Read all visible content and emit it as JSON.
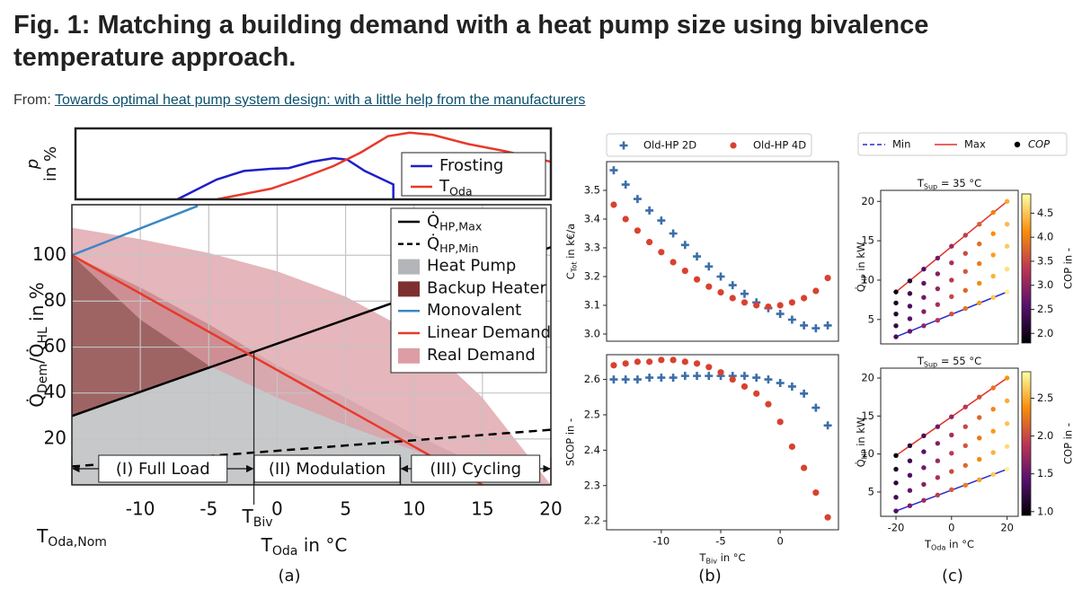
{
  "header": {
    "title": "Fig. 1: Matching a building demand with a heat pump size using bivalence temperature approach.",
    "from_label": "From:",
    "link": "Towards optimal heat pump system design: with a little help from the manufacturers"
  },
  "chart_data": [
    {
      "type": "line",
      "ylabel": [
        "p",
        "in %"
      ],
      "xlim": [
        -15,
        20
      ],
      "ylim": [
        0,
        1
      ],
      "legend": "upper right",
      "series": [
        {
          "name": "Frosting",
          "color": "#1f1fc8",
          "x": [
            -7.5,
            -4.6,
            -2.6,
            -0.6,
            0.7,
            2.4,
            4,
            5,
            6.3,
            8.4,
            8.4
          ],
          "values": [
            0,
            0.28,
            0.4,
            0.43,
            0.44,
            0.53,
            0.58,
            0.56,
            0.4,
            0.21,
            0
          ]
        },
        {
          "name": [
            "T",
            "Oda"
          ],
          "color": "#e8392a",
          "x": [
            -4.6,
            -0.6,
            1.4,
            4,
            6,
            8,
            9.6,
            11.3,
            13.9,
            16.6,
            20
          ],
          "values": [
            0,
            0.15,
            0.28,
            0.47,
            0.66,
            0.89,
            0.94,
            0.91,
            0.78,
            0.68,
            0.53
          ]
        }
      ]
    },
    {
      "type": "area",
      "xlim": [
        -15,
        20
      ],
      "ylim": [
        0,
        122
      ],
      "xticks": [
        -10,
        -5,
        0,
        5,
        10,
        15,
        20
      ],
      "yticks": [
        20,
        40,
        60,
        80,
        100
      ],
      "grid": true,
      "legend": "upper right",
      "xlabel": [
        "T",
        "Oda",
        " in °C"
      ],
      "ylabel": [
        "Q̇",
        "Dem",
        "/Q̇",
        "HL",
        " in %"
      ],
      "x_nominal": {
        "value": -15,
        "label": [
          "T",
          "Oda,Nom"
        ]
      },
      "bivalence": {
        "value": -1.7,
        "label": [
          "T",
          "Biv"
        ]
      },
      "regions": [
        {
          "label": "(I) Full Load",
          "from": -15,
          "to": -1.7
        },
        {
          "label": "(II) Modulation",
          "from": -1.7,
          "to": 9
        },
        {
          "label": "(III) Cycling",
          "from": 9,
          "to": 20
        }
      ],
      "caption": "(a)",
      "series": [
        {
          "name": [
            "Q̇",
            "HP,Max"
          ],
          "kind": "line",
          "color": "#000000",
          "x": [
            -15,
            20
          ],
          "values": [
            30,
            103.5
          ]
        },
        {
          "name": [
            "Q̇",
            "HP,Min"
          ],
          "kind": "dashed",
          "color": "#000000",
          "x": [
            -15,
            20
          ],
          "values": [
            8,
            24
          ]
        },
        {
          "name": "Heat Pump",
          "kind": "area",
          "color": "#b3b5b8",
          "x": [
            -15,
            -10,
            -5,
            -1.7,
            0,
            5,
            10,
            15,
            20
          ],
          "values": [
            30,
            40.5,
            51,
            58,
            52,
            38,
            22,
            8,
            0
          ],
          "lower": [
            0,
            0,
            0,
            0,
            0,
            0,
            0,
            0,
            0
          ]
        },
        {
          "name": "Backup Heater",
          "kind": "area",
          "color": "#7e3030",
          "x": [
            -15,
            -10,
            -5,
            -1.7
          ],
          "values": [
            100,
            86,
            70,
            58
          ],
          "lower": [
            30,
            40.5,
            51,
            58
          ]
        },
        {
          "name": "Monovalent",
          "kind": "line",
          "color": "#3b87c4",
          "x": [
            -15,
            -5.8
          ],
          "values": [
            100,
            121.5
          ]
        },
        {
          "name": "Linear Demand",
          "kind": "line",
          "color": "#e8392a",
          "x": [
            -15,
            15
          ],
          "values": [
            100,
            0
          ]
        },
        {
          "name": "Real Demand",
          "kind": "area",
          "color": "#dc9ea4",
          "x": [
            -15,
            -10,
            -5,
            0,
            5,
            10,
            15,
            20
          ],
          "values": [
            112,
            107,
            101,
            93,
            82,
            66,
            38,
            0
          ],
          "lower": [
            100,
            72,
            52,
            38,
            26,
            15,
            5,
            0
          ]
        }
      ]
    },
    {
      "type": "scatter",
      "legend": "above",
      "x": [
        -14,
        -13,
        -12,
        -11,
        -10,
        -9,
        -8,
        -7,
        -6,
        -5,
        -4,
        -3,
        -2,
        -1,
        0,
        1,
        2,
        3,
        4
      ],
      "xlim": [
        -14.6,
        4.9
      ],
      "ylim": [
        2.975,
        3.6
      ],
      "yticks": [
        {
          "value": 3,
          "label": "3.0"
        },
        3.1,
        3.2,
        3.3,
        3.4,
        3.5
      ],
      "ylabel": [
        "C",
        "Tot",
        " in k€/a"
      ],
      "series": [
        {
          "name": "Old-HP 2D",
          "color": "#3b6ea8",
          "marker": "plus",
          "values": [
            3.57,
            3.52,
            3.47,
            3.43,
            3.395,
            3.35,
            3.31,
            3.27,
            3.235,
            3.2,
            3.17,
            3.14,
            3.11,
            3.09,
            3.07,
            3.05,
            3.03,
            3.02,
            3.03
          ]
        },
        {
          "name": "Old-HP 4D",
          "color": "#d9412f",
          "marker": "circle",
          "values": [
            3.45,
            3.4,
            3.36,
            3.32,
            3.285,
            3.25,
            3.22,
            3.19,
            3.165,
            3.145,
            3.125,
            3.11,
            3.1,
            3.095,
            3.1,
            3.11,
            3.125,
            3.15,
            3.195
          ]
        }
      ]
    },
    {
      "type": "scatter",
      "x": [
        -14,
        -13,
        -12,
        -11,
        -10,
        -9,
        -8,
        -7,
        -6,
        -5,
        -4,
        -3,
        -2,
        -1,
        0,
        1,
        2,
        3,
        4
      ],
      "xlim": [
        -14.6,
        4.9
      ],
      "ylim": [
        2.175,
        2.67
      ],
      "xticks": [
        -10,
        -5,
        0
      ],
      "yticks": [
        2.2,
        2.3,
        2.4,
        2.5,
        2.6
      ],
      "ylabel": "SCOP in -",
      "xlabel": [
        "T",
        "Biv",
        " in °C"
      ],
      "caption": "(b)",
      "series": [
        {
          "color": "#3b6ea8",
          "marker": "plus",
          "values": [
            2.6,
            2.6,
            2.6,
            2.605,
            2.605,
            2.605,
            2.61,
            2.61,
            2.61,
            2.61,
            2.61,
            2.61,
            2.605,
            2.6,
            2.59,
            2.58,
            2.56,
            2.52,
            2.47
          ]
        },
        {
          "color": "#d9412f",
          "marker": "circle",
          "values": [
            2.64,
            2.645,
            2.65,
            2.65,
            2.655,
            2.655,
            2.65,
            2.645,
            2.635,
            2.62,
            2.6,
            2.58,
            2.56,
            2.53,
            2.48,
            2.41,
            2.35,
            2.28,
            2.21
          ]
        }
      ]
    },
    {
      "type": "scatter",
      "legend": "above",
      "title": [
        "T",
        "Sup",
        " = 35 °C"
      ],
      "xlim": [
        -25.5,
        24
      ],
      "ylim": [
        1.9,
        21.4
      ],
      "yticks": [
        5,
        10,
        15,
        20
      ],
      "ylabel": [
        "Q̇",
        "HP",
        " in kW"
      ],
      "colormap": "inferno",
      "clim": [
        1.8,
        4.9
      ],
      "cticks": [
        {
          "value": 2,
          "label": "2.0"
        },
        2.5,
        {
          "value": 3,
          "label": "3.0"
        },
        3.5,
        {
          "value": 4,
          "label": "4.0"
        },
        4.5
      ],
      "clabel": "COP in -",
      "points_name": "COP",
      "lines": [
        {
          "name": "Min",
          "color": "#2a2ad0",
          "dash": true,
          "x": [
            -20,
            20
          ],
          "values": [
            2.8,
            8.5
          ]
        },
        {
          "name": "Max",
          "color": "#e0302a",
          "x": [
            -20,
            20
          ],
          "values": [
            8.5,
            20
          ]
        }
      ],
      "px": [
        -20,
        -20,
        -20,
        -20,
        -20,
        -15,
        -15,
        -15,
        -15,
        -15,
        -10,
        -10,
        -10,
        -10,
        -10,
        -5,
        -5,
        -5,
        -5,
        -5,
        0,
        0,
        0,
        0,
        0,
        5,
        5,
        5,
        5,
        5,
        10,
        10,
        10,
        10,
        10,
        15,
        15,
        15,
        15,
        15,
        20,
        20,
        20,
        20,
        20
      ],
      "py": [
        2.8,
        4.2,
        5.7,
        7.1,
        8.5,
        3.5,
        5.1,
        6.7,
        8.3,
        9.9,
        4.2,
        6,
        7.8,
        9.6,
        11.4,
        4.9,
        6.9,
        8.9,
        10.8,
        12.8,
        5.7,
        7.9,
        10,
        12.2,
        14.3,
        6.4,
        8.7,
        11.1,
        13.4,
        15.7,
        7.1,
        9.6,
        12.1,
        14.6,
        17.1,
        7.8,
        10.5,
        13.2,
        15.9,
        18.6,
        8.5,
        11.4,
        14.3,
        17.1,
        20
      ],
      "pc": [
        2.4,
        2.28,
        2.15,
        2.03,
        1.9,
        2.7,
        2.58,
        2.45,
        2.33,
        2.2,
        3,
        2.88,
        2.75,
        2.63,
        2.5,
        3.3,
        3.18,
        3.05,
        2.93,
        2.8,
        3.6,
        3.48,
        3.35,
        3.23,
        3.1,
        3.9,
        3.78,
        3.65,
        3.53,
        3.4,
        4.2,
        4.08,
        3.95,
        3.83,
        3.7,
        4.5,
        4.38,
        4.25,
        4.13,
        4,
        4.8,
        4.68,
        4.55,
        4.43,
        4.3
      ]
    },
    {
      "type": "scatter",
      "title": [
        "T",
        "Sup",
        " = 55 °C"
      ],
      "xlim": [
        -25.5,
        24
      ],
      "ylim": [
        1.8,
        21.3
      ],
      "xticks": [
        -20,
        0,
        20
      ],
      "yticks": [
        5,
        10,
        15,
        20
      ],
      "ylabel": [
        "Q̇",
        "HP",
        " in kW"
      ],
      "xlabel": [
        "T",
        "Oda",
        " in °C"
      ],
      "caption": "(c)",
      "colormap": "inferno",
      "clim": [
        0.95,
        2.85
      ],
      "cticks": [
        {
          "value": 1,
          "label": "1.0"
        },
        1.5,
        {
          "value": 2,
          "label": "2.0"
        },
        2.5
      ],
      "clabel": "COP in -",
      "lines": [
        {
          "color": "#2a2ad0",
          "dash": true,
          "x": [
            -20,
            20
          ],
          "values": [
            2.5,
            8
          ]
        },
        {
          "color": "#e0302a",
          "x": [
            -20,
            20
          ],
          "values": [
            9.8,
            20
          ]
        }
      ],
      "px": [
        -20,
        -20,
        -20,
        -20,
        -20,
        -15,
        -15,
        -15,
        -15,
        -15,
        -10,
        -10,
        -10,
        -10,
        -10,
        -5,
        -5,
        -5,
        -5,
        -5,
        0,
        0,
        0,
        0,
        0,
        5,
        5,
        5,
        5,
        5,
        10,
        10,
        10,
        10,
        10,
        15,
        15,
        15,
        15,
        15,
        20,
        20,
        20,
        20,
        20
      ],
      "py": [
        2.5,
        4.3,
        6.2,
        8,
        9.8,
        3.2,
        5.2,
        7.2,
        9.1,
        11.1,
        3.9,
        6,
        8.2,
        10.3,
        12.4,
        4.6,
        6.9,
        9.1,
        11.4,
        13.6,
        5.3,
        7.7,
        10.1,
        12.5,
        14.9,
        5.9,
        8.5,
        11.1,
        13.6,
        16.2,
        6.6,
        9.3,
        12.1,
        14.8,
        17.5,
        7.3,
        10.2,
        13,
        15.9,
        18.7,
        8,
        11,
        14,
        17,
        20
      ],
      "pc": [
        1.4,
        1.3,
        1.2,
        1.1,
        1,
        1.58,
        1.48,
        1.38,
        1.28,
        1.18,
        1.75,
        1.65,
        1.55,
        1.45,
        1.35,
        1.93,
        1.83,
        1.73,
        1.63,
        1.53,
        2.1,
        2,
        1.9,
        1.8,
        1.7,
        2.28,
        2.18,
        2.08,
        1.98,
        1.88,
        2.45,
        2.35,
        2.25,
        2.15,
        2.05,
        2.63,
        2.53,
        2.43,
        2.33,
        2.23,
        2.8,
        2.7,
        2.6,
        2.5,
        2.4
      ]
    }
  ]
}
